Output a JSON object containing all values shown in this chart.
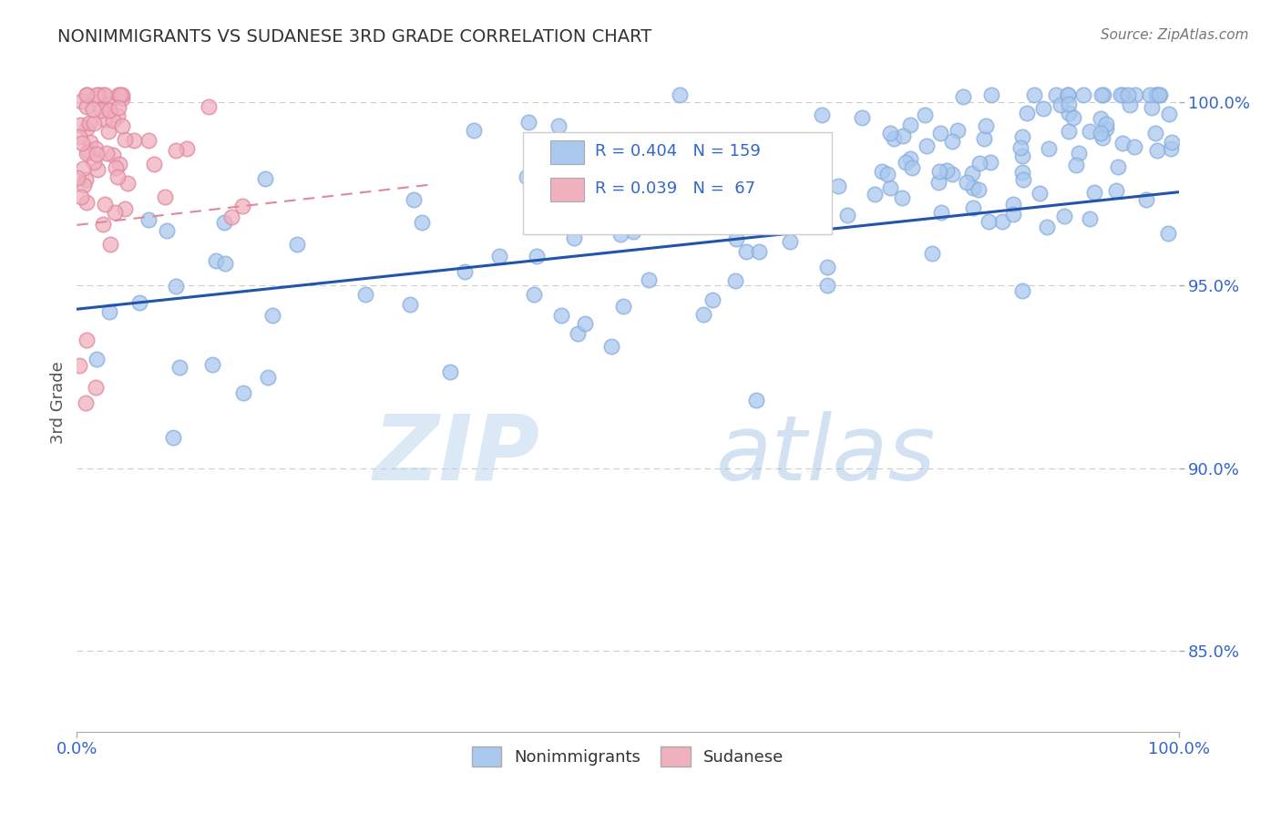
{
  "title": "NONIMMIGRANTS VS SUDANESE 3RD GRADE CORRELATION CHART",
  "source_text": "Source: ZipAtlas.com",
  "ylabel": "3rd Grade",
  "xlim": [
    0,
    1
  ],
  "ylim": [
    0.828,
    1.008
  ],
  "right_yticks": [
    0.85,
    0.9,
    0.95,
    1.0
  ],
  "right_yticklabels": [
    "85.0%",
    "90.0%",
    "95.0%",
    "100.0%"
  ],
  "blue_color": "#aac8ee",
  "blue_edge_color": "#88aedd",
  "pink_color": "#f0b0be",
  "pink_edge_color": "#e088a0",
  "blue_line_color": "#2255aa",
  "pink_line_color": "#e08898",
  "legend_blue_label": "Nonimmigrants",
  "legend_pink_label": "Sudanese",
  "R_blue": 0.404,
  "N_blue": 159,
  "R_pink": 0.039,
  "N_pink": 67,
  "blue_trend_x": [
    0.0,
    1.0
  ],
  "blue_trend_y": [
    0.9435,
    0.9755
  ],
  "pink_trend_x": [
    0.0,
    0.32
  ],
  "pink_trend_y": [
    0.9665,
    0.9775
  ],
  "watermark_zip": "ZIP",
  "watermark_atlas": "atlas",
  "background_color": "#ffffff",
  "title_color": "#333388",
  "source_color": "#777777",
  "axis_label_color": "#555555",
  "tick_color": "#3366cc",
  "grid_color": "#cccccc"
}
